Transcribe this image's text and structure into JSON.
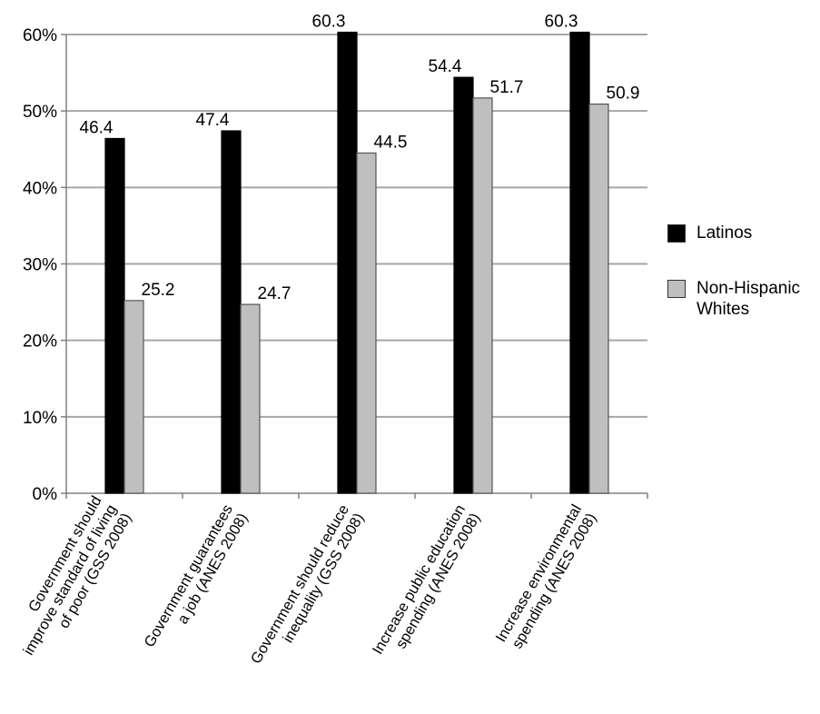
{
  "chart_data": {
    "type": "bar",
    "categories": [
      [
        "Government should",
        "improve standard of living",
        "of poor (GSS 2008)"
      ],
      [
        "Government guarantees",
        "a job (ANES 2008)"
      ],
      [
        "Government should reduce",
        "inequality (GSS 2008)"
      ],
      [
        "Increase public education",
        "spending (ANES 2008)"
      ],
      [
        "Increase environmental",
        "spending (ANES 2008)"
      ]
    ],
    "series": [
      {
        "name": "Latinos",
        "color": "#000000",
        "values": [
          46.4,
          47.4,
          60.3,
          54.4,
          60.3
        ],
        "labels": [
          "46.4",
          "47.4",
          "60.3",
          "54.4",
          "60.3"
        ]
      },
      {
        "name": "Non-Hispanic Whites",
        "color": "#bfbfbf",
        "values": [
          25.2,
          24.7,
          44.5,
          51.7,
          50.9
        ],
        "labels": [
          "25.2",
          "24.7",
          "44.5",
          "51.7",
          "50.9"
        ]
      }
    ],
    "yticks": [
      "0%",
      "10%",
      "20%",
      "30%",
      "40%",
      "50%",
      "60%"
    ],
    "ylim": [
      0,
      60
    ],
    "grid": true,
    "legend_position": "right"
  },
  "legend": {
    "items": [
      {
        "label": "Latinos",
        "color": "#000000"
      },
      {
        "label_lines": [
          "Non-Hispanic",
          "Whites"
        ],
        "color": "#bfbfbf"
      }
    ]
  }
}
